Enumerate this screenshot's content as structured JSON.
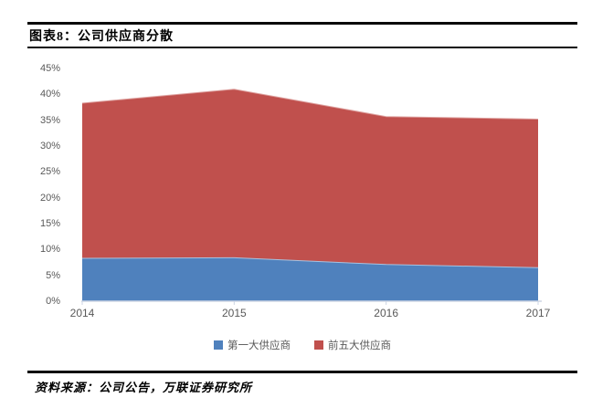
{
  "figure": {
    "title": "图表8：公司供应商分散",
    "source": "资料来源：公司公告，万联证券研究所"
  },
  "chart_data": {
    "type": "area",
    "title": "公司供应商分散",
    "x": [
      2014,
      2015,
      2016,
      2017
    ],
    "xticks": [
      "2014",
      "2015",
      "2016",
      "2017"
    ],
    "series": [
      {
        "key": "top5-suppliers",
        "name": "前五大供应商",
        "color": "#C0504D",
        "edge": "#DDA09E",
        "values": [
          38.3,
          41.0,
          35.7,
          35.2
        ]
      },
      {
        "key": "top1-supplier",
        "name": "第一大供应商",
        "color": "#4F81BD",
        "edge": "#A9C2DF",
        "values": [
          8.3,
          8.4,
          7.1,
          6.5
        ]
      }
    ],
    "legend": [
      "top1-supplier",
      "top5-suppliers"
    ],
    "legend_position": "bottom",
    "ylim": [
      0,
      45
    ],
    "ytick_step": 5,
    "yticks": [
      "0%",
      "5%",
      "10%",
      "15%",
      "20%",
      "25%",
      "30%",
      "35%",
      "40%",
      "45%"
    ],
    "grid": false,
    "axis_color": "#CDD6E4",
    "label_color": "#595959"
  }
}
